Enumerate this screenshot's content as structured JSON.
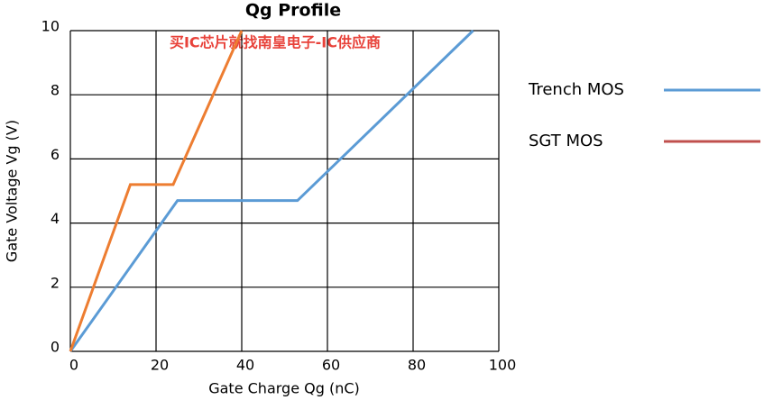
{
  "chart_data": {
    "type": "line",
    "title": "Qg Profile",
    "annotation": "买IC芯片就找南皇电子-IC供应商",
    "x_label": "Gate Charge Qg (nC)",
    "y_label": "Gate Voltage Vg (V)",
    "xlim": [
      0,
      100
    ],
    "ylim": [
      0,
      10
    ],
    "xticks": [
      0,
      20,
      40,
      60,
      80,
      100
    ],
    "yticks": [
      0,
      2,
      4,
      6,
      8,
      10
    ],
    "grid": true,
    "legend": "right",
    "series": [
      {
        "name": "Trench MOS",
        "color": "#5b9bd5",
        "legend_color": "#5b9bd5",
        "x": [
          0,
          25,
          53,
          94
        ],
        "values": [
          0,
          4.7,
          4.7,
          10
        ]
      },
      {
        "name": "SGT  MOS",
        "color": "#ed7d31",
        "legend_color": "#c0504d",
        "x": [
          0,
          14,
          24,
          40
        ],
        "values": [
          0,
          5.2,
          5.2,
          10
        ]
      }
    ]
  }
}
